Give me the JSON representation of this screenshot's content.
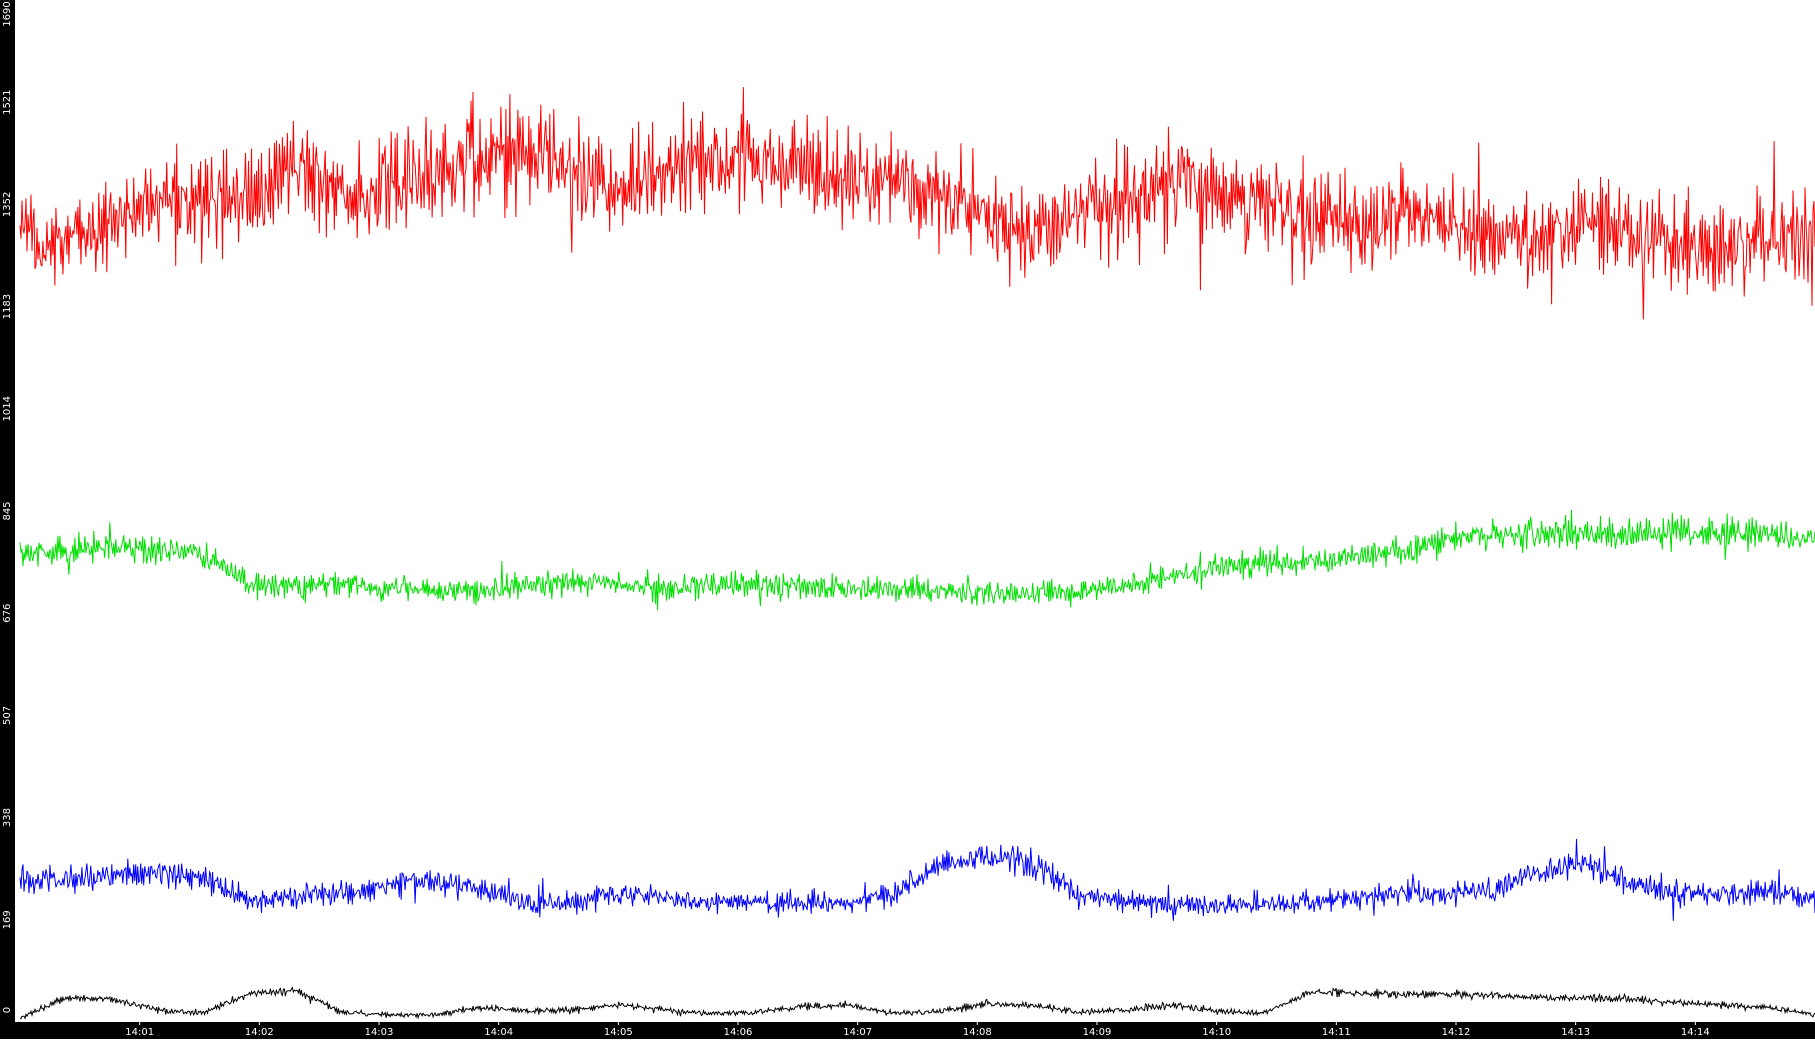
{
  "chart_data": {
    "type": "line",
    "title": "",
    "xlabel": "",
    "ylabel": "",
    "ylim": [
      0,
      1690
    ],
    "y_ticks": [
      "0",
      "169",
      "338",
      "507",
      "676",
      "845",
      "1014",
      "1183",
      "1352",
      "1521",
      "1690"
    ],
    "x_ticks": [
      "14:01",
      "14:02",
      "14:03",
      "14:04",
      "14:05",
      "14:06",
      "14:07",
      "14:08",
      "14:09",
      "14:10",
      "14:11",
      "14:12",
      "14:13",
      "14:14"
    ],
    "x_range": [
      "14:00",
      "14:15"
    ],
    "grid": false,
    "legend": "none",
    "colors": {
      "background": "#ffffff",
      "axis_bar": "#000000",
      "axis_text": "#ffffff",
      "red": "#ff0000",
      "green": "#00e000",
      "blue": "#0000ff",
      "black": "#000000"
    },
    "series": [
      {
        "color": "#ff0000",
        "baseline": [
          1300,
          1280,
          1330,
          1350,
          1370,
          1360,
          1420,
          1360,
          1380,
          1400,
          1420,
          1440,
          1420,
          1380,
          1400,
          1420,
          1440,
          1410,
          1400,
          1390,
          1370,
          1330,
          1290,
          1330,
          1370,
          1390,
          1370,
          1360,
          1330,
          1320,
          1340,
          1330,
          1300,
          1290,
          1310,
          1300,
          1290,
          1280,
          1300,
          1310
        ],
        "amplitude": [
          140,
          130,
          140,
          140,
          160,
          150,
          170,
          150,
          160,
          170,
          180,
          170,
          160,
          150,
          160,
          170,
          170,
          160,
          160,
          150,
          140,
          160,
          150,
          160,
          160,
          170,
          160,
          150,
          150,
          150,
          150,
          150,
          140,
          140,
          150,
          150,
          150,
          150,
          160,
          170
        ]
      },
      {
        "color": "#00e000",
        "baseline": [
          775,
          780,
          785,
          780,
          770,
          725,
          720,
          722,
          718,
          712,
          715,
          722,
          728,
          722,
          718,
          722,
          725,
          720,
          716,
          718,
          712,
          710,
          708,
          712,
          722,
          738,
          752,
          758,
          760,
          770,
          775,
          800,
          805,
          808,
          810,
          805,
          812,
          808,
          806,
          800
        ],
        "amplitude": [
          45,
          45,
          50,
          45,
          45,
          40,
          40,
          40,
          40,
          40,
          40,
          40,
          40,
          40,
          40,
          40,
          40,
          40,
          40,
          40,
          40,
          40,
          40,
          40,
          40,
          45,
          45,
          45,
          45,
          45,
          45,
          50,
          50,
          50,
          50,
          50,
          50,
          50,
          50,
          45
        ]
      },
      {
        "color": "#0000ff",
        "baseline": [
          232,
          238,
          242,
          245,
          236,
          200,
          208,
          212,
          228,
          232,
          218,
          196,
          198,
          212,
          206,
          200,
          198,
          196,
          198,
          212,
          258,
          275,
          262,
          212,
          200,
          196,
          192,
          195,
          198,
          208,
          212,
          214,
          214,
          248,
          262,
          232,
          212,
          208,
          218,
          202
        ],
        "amplitude": [
          40,
          40,
          40,
          45,
          40,
          35,
          38,
          38,
          40,
          40,
          38,
          35,
          35,
          38,
          36,
          35,
          35,
          35,
          35,
          38,
          45,
          50,
          45,
          38,
          35,
          35,
          35,
          35,
          35,
          38,
          38,
          38,
          38,
          45,
          45,
          40,
          38,
          38,
          40,
          38
        ]
      },
      {
        "color": "#000000",
        "baseline": [
          6,
          40,
          38,
          20,
          15,
          48,
          52,
          16,
          12,
          12,
          24,
          18,
          20,
          28,
          20,
          14,
          16,
          26,
          28,
          14,
          18,
          30,
          28,
          16,
          20,
          28,
          18,
          14,
          48,
          48,
          46,
          46,
          44,
          40,
          40,
          38,
          32,
          28,
          24,
          12
        ],
        "amplitude": [
          8,
          12,
          12,
          10,
          10,
          12,
          12,
          10,
          8,
          8,
          10,
          10,
          10,
          10,
          10,
          8,
          8,
          10,
          10,
          8,
          10,
          12,
          12,
          10,
          10,
          12,
          10,
          8,
          12,
          12,
          12,
          12,
          12,
          12,
          12,
          12,
          10,
          10,
          10,
          8
        ]
      }
    ]
  }
}
